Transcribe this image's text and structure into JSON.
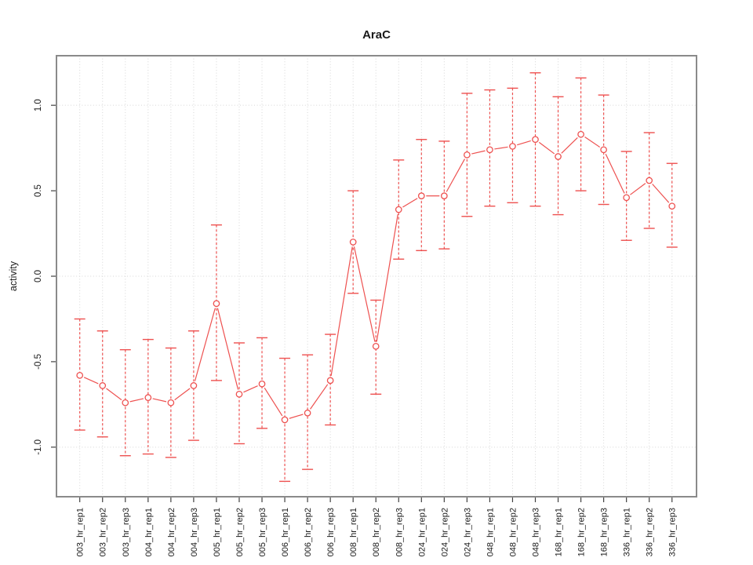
{
  "chart_data": {
    "type": "line",
    "title": "AraC",
    "xlabel": "",
    "ylabel": "activity",
    "legend_position": "none",
    "grid": true,
    "marker": "open-circle",
    "error_bars": "dashed-with-caps",
    "ylim": [
      -1.29,
      1.29
    ],
    "ytick_labels": [
      "-1.0",
      "-0.5",
      "0.0",
      "0.5",
      "1.0"
    ],
    "ytick_values": [
      -1.0,
      -0.5,
      0.0,
      0.5,
      1.0
    ],
    "grid_y_values": [
      -1.0,
      0.0,
      1.0
    ],
    "categories": [
      "003_hr_rep1",
      "003_hr_rep2",
      "003_hr_rep3",
      "004_hr_rep1",
      "004_hr_rep2",
      "004_hr_rep3",
      "005_hr_rep1",
      "005_hr_rep2",
      "005_hr_rep3",
      "006_hr_rep1",
      "006_hr_rep2",
      "006_hr_rep3",
      "008_hr_rep1",
      "008_hr_rep2",
      "008_hr_rep3",
      "024_hr_rep1",
      "024_hr_rep2",
      "024_hr_rep3",
      "048_hr_rep1",
      "048_hr_rep2",
      "048_hr_rep3",
      "168_hr_rep1",
      "168_hr_rep2",
      "168_hr_rep3",
      "336_hr_rep1",
      "336_hr_rep2",
      "336_hr_rep3"
    ],
    "series": [
      {
        "name": "activity",
        "values": [
          -0.58,
          -0.64,
          -0.74,
          -0.71,
          -0.74,
          -0.64,
          -0.16,
          -0.69,
          -0.63,
          -0.84,
          -0.8,
          -0.61,
          0.2,
          -0.41,
          0.39,
          0.47,
          0.47,
          0.71,
          0.74,
          0.76,
          0.8,
          0.7,
          0.83,
          0.74,
          0.46,
          0.56,
          0.41
        ],
        "error_low": [
          -0.9,
          -0.94,
          -1.05,
          -1.04,
          -1.06,
          -0.96,
          -0.61,
          -0.98,
          -0.89,
          -1.2,
          -1.13,
          -0.87,
          -0.1,
          -0.69,
          0.1,
          0.15,
          0.16,
          0.35,
          0.41,
          0.43,
          0.41,
          0.36,
          0.5,
          0.42,
          0.21,
          0.28,
          0.17
        ],
        "error_high": [
          -0.25,
          -0.32,
          -0.43,
          -0.37,
          -0.42,
          -0.32,
          0.3,
          -0.39,
          -0.36,
          -0.48,
          -0.46,
          -0.34,
          0.5,
          -0.14,
          0.68,
          0.8,
          0.79,
          1.07,
          1.09,
          1.1,
          1.19,
          1.05,
          1.16,
          1.06,
          0.73,
          0.84,
          0.66
        ]
      }
    ],
    "colors": {
      "series": "#ee5150",
      "grid": "#d6d6d6",
      "frame": "#8a8a8a",
      "tick": "#404040",
      "text": "#1a1a1a",
      "background": "#ffffff"
    }
  }
}
